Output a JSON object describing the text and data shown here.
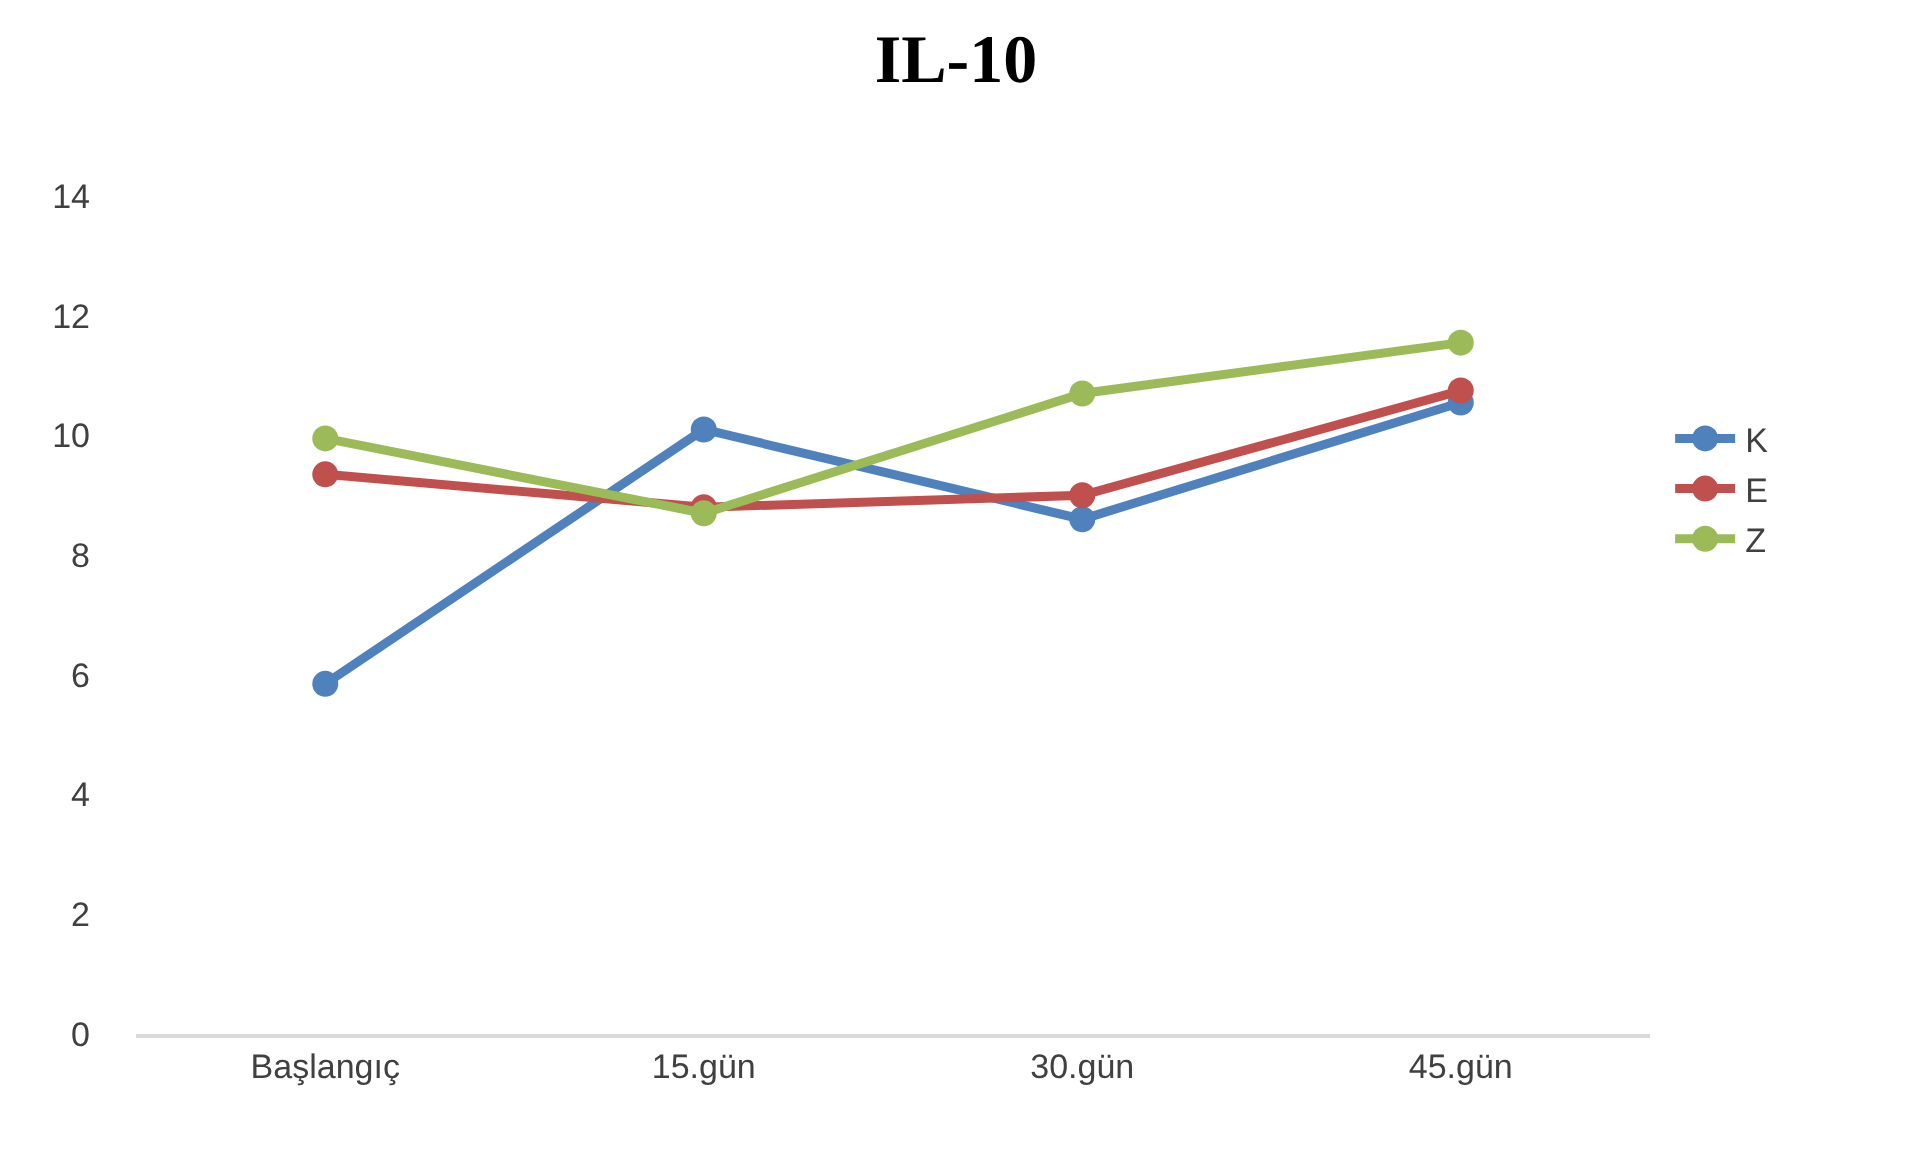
{
  "chart_data": {
    "type": "line",
    "title": "IL-10",
    "categories": [
      "Başlangıç",
      "15.gün",
      "30.gün",
      "45.gün"
    ],
    "series": [
      {
        "name": "K",
        "color": "#4f81bd",
        "values": [
          5.85,
          10.1,
          8.6,
          10.55
        ]
      },
      {
        "name": "E",
        "color": "#c0504d",
        "values": [
          9.35,
          8.8,
          9.0,
          10.75
        ]
      },
      {
        "name": "Z",
        "color": "#9bbb59",
        "values": [
          9.95,
          8.7,
          10.7,
          11.55
        ]
      }
    ],
    "ylim": [
      0,
      14
    ],
    "yticks": [
      0,
      2,
      4,
      6,
      8,
      10,
      12,
      14
    ],
    "grid": false,
    "legend": "right",
    "marker": "circle",
    "line_style": "solid"
  }
}
